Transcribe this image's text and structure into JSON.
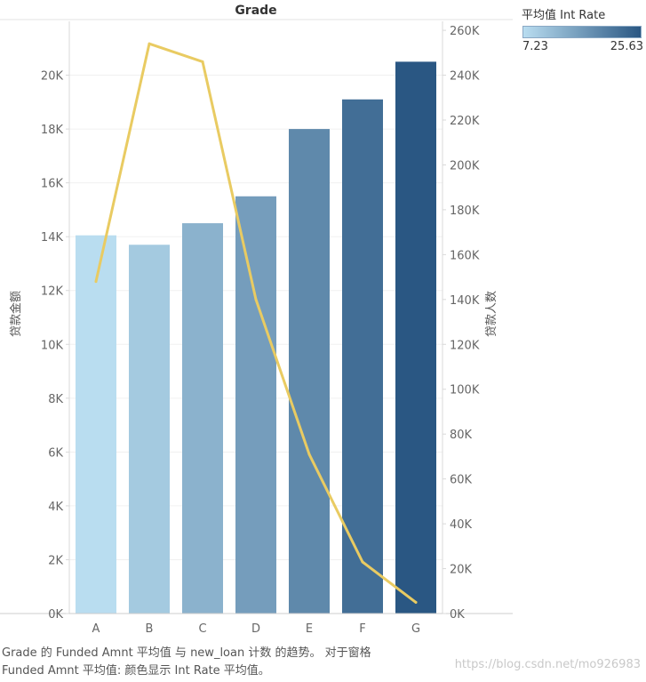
{
  "chart_data": {
    "type": "bar+line",
    "title": "Grade",
    "categories": [
      "A",
      "B",
      "C",
      "D",
      "E",
      "F",
      "G"
    ],
    "bar_series": {
      "name": "平均值 Funded Amnt",
      "values": [
        14050,
        13700,
        14500,
        15500,
        18000,
        19100,
        20500
      ],
      "color_values": [
        7.23,
        9.9,
        13.2,
        16.0,
        18.8,
        22.5,
        25.63
      ]
    },
    "line_series": {
      "name": "new_loan 计数",
      "values": [
        148000,
        254000,
        246000,
        140000,
        71000,
        23000,
        5000
      ],
      "color": "#e9cb62"
    },
    "y_left": {
      "label": "贷款金额",
      "range": [
        0,
        22000
      ],
      "ticks": [
        0,
        2000,
        4000,
        6000,
        8000,
        10000,
        12000,
        14000,
        16000,
        18000,
        20000
      ],
      "tick_labels": [
        "0K",
        "2K",
        "4K",
        "6K",
        "8K",
        "10K",
        "12K",
        "14K",
        "16K",
        "18K",
        "20K"
      ]
    },
    "y_right": {
      "label": "贷款人数",
      "range": [
        0,
        264000
      ],
      "ticks": [
        0,
        20000,
        40000,
        60000,
        80000,
        100000,
        120000,
        140000,
        160000,
        180000,
        200000,
        220000,
        240000,
        260000
      ],
      "tick_labels": [
        "0K",
        "20K",
        "40K",
        "60K",
        "80K",
        "100K",
        "120K",
        "140K",
        "160K",
        "180K",
        "200K",
        "220K",
        "240K",
        "260K"
      ]
    },
    "legend": {
      "title": "平均值 Int Rate",
      "min_label": "7.23",
      "max_label": "25.63",
      "min": 7.23,
      "max": 25.63,
      "color_low": "#b9ddf0",
      "color_high": "#2a5783",
      "position": "top-right"
    }
  },
  "caption": {
    "line1": "Grade 的 Funded Amnt 平均值 与 new_loan 计数 的趋势。 对于窗格",
    "line2": "Funded Amnt 平均值:  颜色显示 Int Rate 平均值。"
  },
  "watermark": "https://blog.csdn.net/mo926983"
}
